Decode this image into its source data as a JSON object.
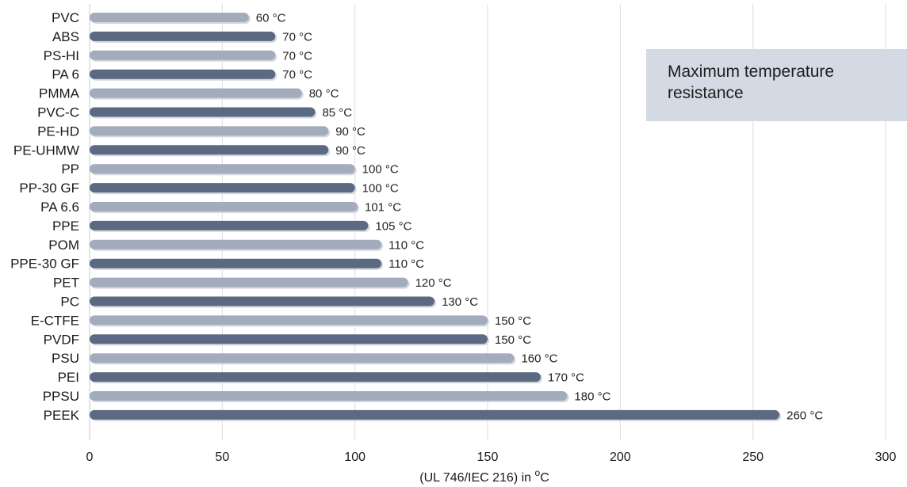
{
  "chart_data": {
    "type": "bar",
    "orientation": "horizontal",
    "categories": [
      "PVC",
      "ABS",
      "PS-HI",
      "PA 6",
      "PMMA",
      "PVC-C",
      "PE-HD",
      "PE-UHMW",
      "PP",
      "PP-30 GF",
      "PA 6.6",
      "PPE",
      "POM",
      "PPE-30 GF",
      "PET",
      "PC",
      "E-CTFE",
      "PVDF",
      "PSU",
      "PEI",
      "PPSU",
      "PEEK"
    ],
    "values": [
      60,
      70,
      70,
      70,
      80,
      85,
      90,
      90,
      100,
      100,
      101,
      105,
      110,
      110,
      120,
      130,
      150,
      150,
      160,
      170,
      180,
      260
    ],
    "value_labels": [
      "60 °C",
      "70 °C",
      "70 °C",
      "70 °C",
      "80 °C",
      "85 °C",
      "90 °C",
      "90 °C",
      "100 °C",
      "100 °C",
      "101 °C",
      "105 °C",
      "110 °C",
      "110 °C",
      "120 °C",
      "130 °C",
      "150 °C",
      "150 °C",
      "160 °C",
      "170 °C",
      "180 °C",
      "260 °C"
    ],
    "bar_colors": [
      "#a2acbc",
      "#5b6a82"
    ],
    "xlim": [
      0,
      300
    ],
    "xticks": [
      0,
      50,
      100,
      150,
      200,
      250,
      300
    ],
    "xlabel_main": "(UL 746/IEC 216) in ",
    "xlabel_sup": "o",
    "xlabel_end": "C",
    "grid": "vertical",
    "legend": {
      "text": "Maximum temperature resistance",
      "placement": "top-right",
      "background": "#d3dae3"
    }
  }
}
